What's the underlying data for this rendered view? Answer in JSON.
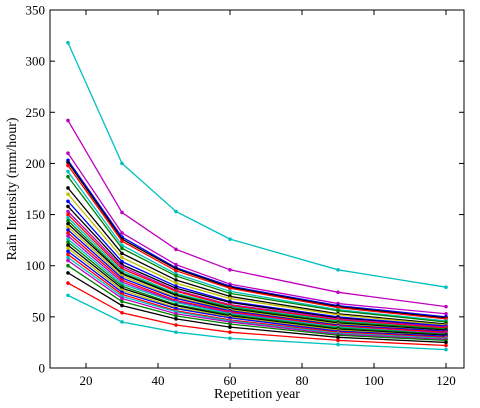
{
  "chart_data": {
    "type": "line",
    "title": "",
    "xlabel": "Repetition year",
    "ylabel": "Rain Intensity (mm/hour)",
    "xlim": [
      10,
      125
    ],
    "ylim": [
      0,
      350
    ],
    "xticks": [
      20,
      40,
      60,
      80,
      100,
      120
    ],
    "yticks": [
      0,
      50,
      100,
      150,
      200,
      250,
      300,
      350
    ],
    "grid": false,
    "legend": "none",
    "x": [
      15,
      30,
      45,
      60,
      90,
      120
    ],
    "series": [
      {
        "color": "#00bfbf",
        "values": [
          318,
          200,
          153,
          126,
          96,
          79
        ]
      },
      {
        "color": "#bf00bf",
        "values": [
          242,
          152,
          116,
          96,
          74,
          60
        ]
      },
      {
        "color": "#bf00bf",
        "values": [
          210,
          132,
          101,
          82,
          63,
          53
        ]
      },
      {
        "color": "#0000ff",
        "values": [
          203,
          128,
          98,
          80,
          61,
          50
        ]
      },
      {
        "color": "#000000",
        "values": [
          201,
          126,
          97,
          79,
          60,
          49
        ]
      },
      {
        "color": "#ff0000",
        "values": [
          198,
          124,
          95,
          78,
          59,
          48
        ]
      },
      {
        "color": "#00bfbf",
        "values": [
          192,
          120,
          92,
          75,
          57,
          46
        ]
      },
      {
        "color": "#008000",
        "values": [
          187,
          117,
          90,
          73,
          56,
          45
        ]
      },
      {
        "color": "#000000",
        "values": [
          176,
          112,
          86,
          70,
          53,
          43
        ]
      },
      {
        "color": "#bfbf00",
        "values": [
          170,
          108,
          83,
          68,
          52,
          42
        ]
      },
      {
        "color": "#0000ff",
        "values": [
          163,
          104,
          80,
          65,
          50,
          41
        ]
      },
      {
        "color": "#000000",
        "values": [
          158,
          101,
          78,
          64,
          49,
          40
        ]
      },
      {
        "color": "#bf00bf",
        "values": [
          153,
          99,
          76,
          62,
          48,
          40
        ]
      },
      {
        "color": "#ff0000",
        "values": [
          150,
          97,
          75,
          61,
          47,
          39
        ]
      },
      {
        "color": "#00bfbf",
        "values": [
          147,
          95,
          73,
          60,
          46,
          38
        ]
      },
      {
        "color": "#008000",
        "values": [
          144,
          93,
          72,
          59,
          45,
          38
        ]
      },
      {
        "color": "#000000",
        "values": [
          141,
          92,
          71,
          58,
          44,
          37
        ]
      },
      {
        "color": "#bfbf00",
        "values": [
          138,
          90,
          69,
          57,
          43,
          36
        ]
      },
      {
        "color": "#0000ff",
        "values": [
          135,
          88,
          68,
          56,
          42,
          36
        ]
      },
      {
        "color": "#ff0000",
        "values": [
          132,
          86,
          66,
          55,
          41,
          35
        ]
      },
      {
        "color": "#bf00bf",
        "values": [
          129,
          84,
          65,
          54,
          40,
          34
        ]
      },
      {
        "color": "#00bfbf",
        "values": [
          126,
          82,
          64,
          53,
          40,
          33
        ]
      },
      {
        "color": "#008000",
        "values": [
          123,
          80,
          62,
          52,
          39,
          33
        ]
      },
      {
        "color": "#000000",
        "values": [
          120,
          78,
          61,
          51,
          38,
          32
        ]
      },
      {
        "color": "#bfbf00",
        "values": [
          117,
          76,
          59,
          50,
          37,
          31
        ]
      },
      {
        "color": "#0000ff",
        "values": [
          114,
          74,
          58,
          49,
          36,
          31
        ]
      },
      {
        "color": "#ff0000",
        "values": [
          111,
          72,
          56,
          47,
          35,
          30
        ]
      },
      {
        "color": "#00bfbf",
        "values": [
          108,
          70,
          55,
          46,
          34,
          29
        ]
      },
      {
        "color": "#bf00bf",
        "values": [
          105,
          68,
          53,
          45,
          33,
          28
        ]
      },
      {
        "color": "#008000",
        "values": [
          100,
          65,
          51,
          43,
          32,
          27
        ]
      },
      {
        "color": "#000000",
        "values": [
          93,
          61,
          48,
          40,
          30,
          25
        ]
      },
      {
        "color": "#ff0000",
        "values": [
          83,
          54,
          42,
          35,
          27,
          22
        ]
      },
      {
        "color": "#00bfbf",
        "values": [
          71,
          45,
          35,
          29,
          23,
          18
        ]
      }
    ]
  }
}
